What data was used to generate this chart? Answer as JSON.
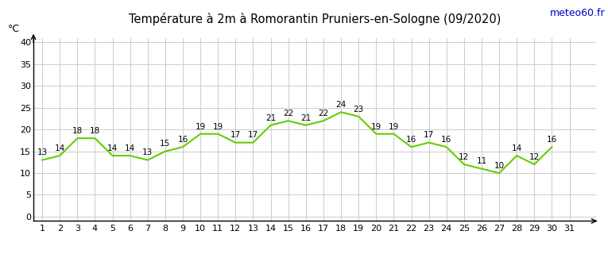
{
  "title": "Température à 2m à Romorantin Pruniers-en-Sologne (09/2020)",
  "ylabel": "°C",
  "watermark": "meteo60.fr",
  "days": [
    1,
    2,
    3,
    4,
    5,
    6,
    7,
    8,
    9,
    10,
    11,
    12,
    13,
    14,
    15,
    16,
    17,
    18,
    19,
    20,
    21,
    22,
    23,
    24,
    25,
    26,
    27,
    28,
    29,
    30,
    31
  ],
  "temps": [
    13,
    14,
    18,
    18,
    14,
    14,
    13,
    15,
    16,
    19,
    19,
    17,
    17,
    21,
    22,
    21,
    22,
    24,
    23,
    19,
    19,
    16,
    17,
    16,
    12,
    11,
    10,
    14,
    12,
    16,
    null
  ],
  "ylim": [
    -1,
    41
  ],
  "yticks": [
    0,
    5,
    10,
    15,
    20,
    25,
    30,
    35,
    40
  ],
  "xlim": [
    0.5,
    32.5
  ],
  "xticks": [
    1,
    2,
    3,
    4,
    5,
    6,
    7,
    8,
    9,
    10,
    11,
    12,
    13,
    14,
    15,
    16,
    17,
    18,
    19,
    20,
    21,
    22,
    23,
    24,
    25,
    26,
    27,
    28,
    29,
    30,
    31
  ],
  "line_color": "#66cc00",
  "line_width": 1.5,
  "grid_color": "#cccccc",
  "bg_color": "#ffffff",
  "title_color": "#000000",
  "watermark_color": "#0000cc",
  "label_fontsize": 7.5,
  "title_fontsize": 10.5,
  "axis_fontsize": 8
}
